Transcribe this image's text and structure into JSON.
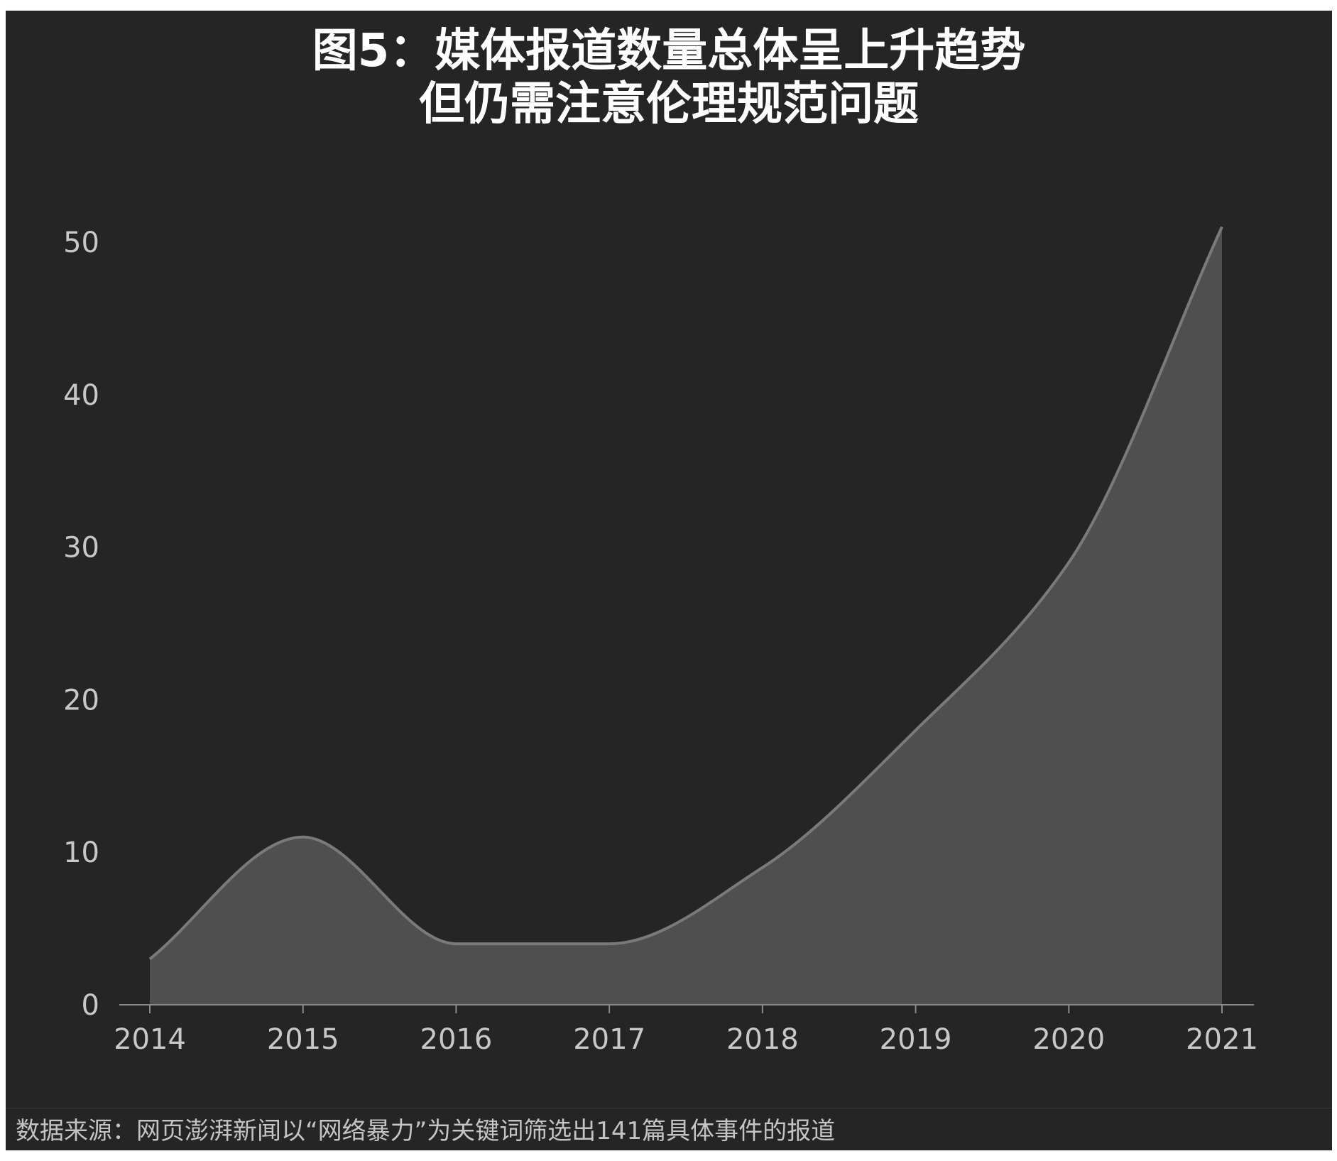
{
  "title": {
    "line1": "图5：媒体报道数量总体呈上升趋势",
    "line2": "但仍需注意伦理规范问题"
  },
  "source": "数据来源：网页澎湃新闻以“网络暴力”为关键词筛选出141篇具体事件的报道",
  "colors": {
    "background": "#252525",
    "area_fill": "#4f4f4f",
    "line": "#7a7a7a",
    "axis": "#8a8a8a",
    "tick_text": "#c8c8c8",
    "title_text": "#ffffff"
  },
  "chart_data": {
    "type": "area",
    "smooth": true,
    "x": [
      "2014",
      "2015",
      "2016",
      "2017",
      "2018",
      "2019",
      "2020",
      "2021"
    ],
    "values": [
      3,
      11,
      4,
      4,
      9,
      18,
      29,
      51
    ],
    "ylim": [
      0,
      50
    ],
    "yticks": [
      0,
      10,
      20,
      30,
      40,
      50
    ],
    "grid": false,
    "legend": "none"
  }
}
